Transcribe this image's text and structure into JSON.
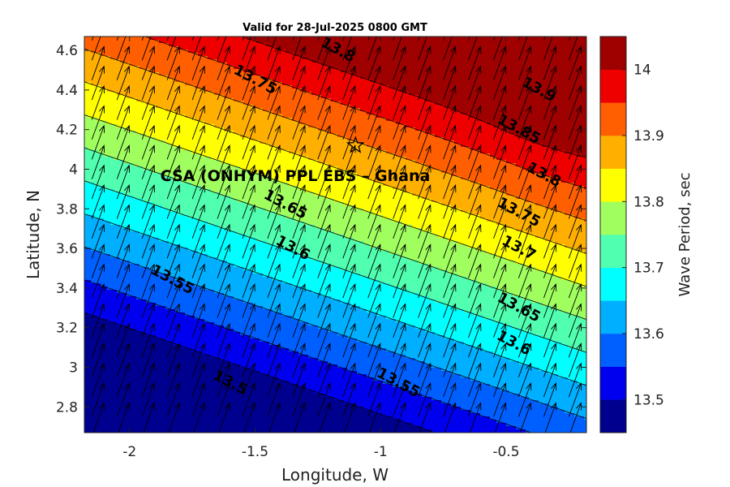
{
  "chart_data": {
    "type": "heatmap",
    "subtype": "filled-contour with wave direction arrows",
    "title": "Valid for 28-Jul-2025 0800 GMT",
    "xlabel": "Longitude, W",
    "ylabel": "Latitude, N",
    "xlim": [
      -2.18,
      -0.18
    ],
    "ylim": [
      2.67,
      4.67
    ],
    "xticks": [
      -2,
      -1.5,
      -1,
      -0.5
    ],
    "xtick_labels": [
      "-2",
      "-1.5",
      "-1",
      "-0.5"
    ],
    "yticks": [
      2.8,
      3,
      3.2,
      3.4,
      3.6,
      3.8,
      4,
      4.2,
      4.4,
      4.6
    ],
    "ytick_labels": [
      "2.8",
      "3",
      "3.2",
      "3.4",
      "3.6",
      "3.8",
      "4",
      "4.2",
      "4.4",
      "4.6"
    ],
    "grid": false,
    "colorbar": {
      "label": "Wave Period, sec",
      "range": [
        13.45,
        14.05
      ],
      "ticks": [
        13.5,
        13.6,
        13.7,
        13.8,
        13.9,
        14
      ],
      "tick_labels": [
        "13.5",
        "13.6",
        "13.7",
        "13.8",
        "13.9",
        "14"
      ],
      "levels": [
        {
          "from": 13.45,
          "to": 13.5,
          "color": "#00008f"
        },
        {
          "from": 13.5,
          "to": 13.55,
          "color": "#0000ef"
        },
        {
          "from": 13.55,
          "to": 13.6,
          "color": "#005fff"
        },
        {
          "from": 13.6,
          "to": 13.65,
          "color": "#00afff"
        },
        {
          "from": 13.65,
          "to": 13.7,
          "color": "#00ffff"
        },
        {
          "from": 13.7,
          "to": 13.75,
          "color": "#50ffaf"
        },
        {
          "from": 13.75,
          "to": 13.8,
          "color": "#a0ff5f"
        },
        {
          "from": 13.8,
          "to": 13.85,
          "color": "#ffff00"
        },
        {
          "from": 13.85,
          "to": 13.9,
          "color": "#ffaf00"
        },
        {
          "from": 13.9,
          "to": 13.95,
          "color": "#ff5f00"
        },
        {
          "from": 13.95,
          "to": 14.0,
          "color": "#ef0000"
        },
        {
          "from": 14.0,
          "to": 14.05,
          "color": "#9f0000"
        }
      ]
    },
    "contour_labels": [
      {
        "text": "13.5",
        "lon": -1.6,
        "lat": 2.92
      },
      {
        "text": "13.55",
        "lon": -1.83,
        "lat": 3.44
      },
      {
        "text": "13.55",
        "lon": -0.93,
        "lat": 2.92
      },
      {
        "text": "13.6",
        "lon": -1.35,
        "lat": 3.6
      },
      {
        "text": "13.6",
        "lon": -0.47,
        "lat": 3.12
      },
      {
        "text": "13.65",
        "lon": -1.38,
        "lat": 3.82
      },
      {
        "text": "13.65",
        "lon": -0.45,
        "lat": 3.3
      },
      {
        "text": "13.7",
        "lon": -0.45,
        "lat": 3.6
      },
      {
        "text": "13.75",
        "lon": -1.5,
        "lat": 4.45
      },
      {
        "text": "13.75",
        "lon": -0.45,
        "lat": 3.78
      },
      {
        "text": "13.8",
        "lon": -1.17,
        "lat": 4.6
      },
      {
        "text": "13.8",
        "lon": -0.35,
        "lat": 3.97
      },
      {
        "text": "13.85",
        "lon": -0.45,
        "lat": 4.2
      },
      {
        "text": "13.9",
        "lon": -0.37,
        "lat": 4.4
      }
    ],
    "site": {
      "name": "CSA (ONHYM) PPL EBS  – Ghana",
      "lon": -1.1,
      "lat": 4.12,
      "marker": "star"
    },
    "arrows": {
      "direction_deg_from_north": 20,
      "spacing_deg": 0.1,
      "note": "uniform wave direction vectors toward NNE"
    }
  }
}
